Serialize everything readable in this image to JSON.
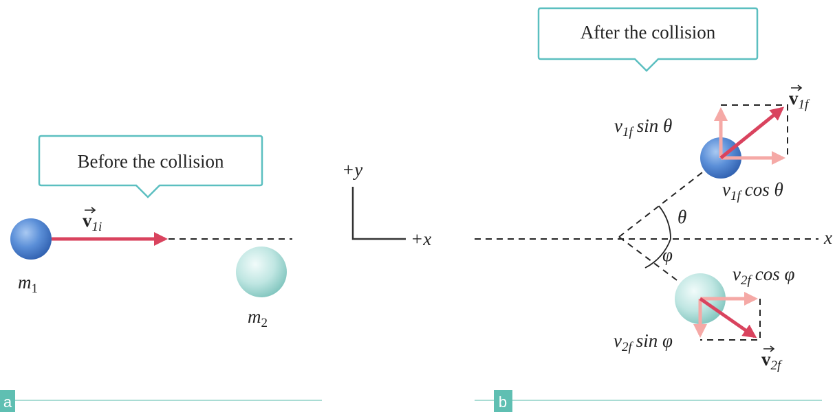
{
  "panel_a": {
    "label": "a",
    "callout": "Before the collision",
    "velocity": {
      "symbol": "v",
      "subscript": "1i"
    },
    "mass_1": {
      "symbol": "m",
      "subscript": "1"
    },
    "mass_2": {
      "symbol": "m",
      "subscript": "2"
    }
  },
  "axes": {
    "y_label": "+y",
    "x_label": "+x"
  },
  "panel_b": {
    "label": "b",
    "callout": "After the collision",
    "axis_label": "x",
    "theta": "θ",
    "phi": "φ",
    "v1f": {
      "symbol": "v",
      "subscript": "1f"
    },
    "v2f": {
      "symbol": "v",
      "subscript": "2f"
    },
    "v1f_sin": {
      "symbol": "v",
      "subscript": "1f",
      "term": "sin θ"
    },
    "v1f_cos": {
      "symbol": "v",
      "subscript": "1f",
      "term": "cos θ"
    },
    "v2f_cos": {
      "symbol": "v",
      "subscript": "2f",
      "term": "cos φ"
    },
    "v2f_sin": {
      "symbol": "v",
      "subscript": "2f",
      "term": "sin φ"
    }
  }
}
